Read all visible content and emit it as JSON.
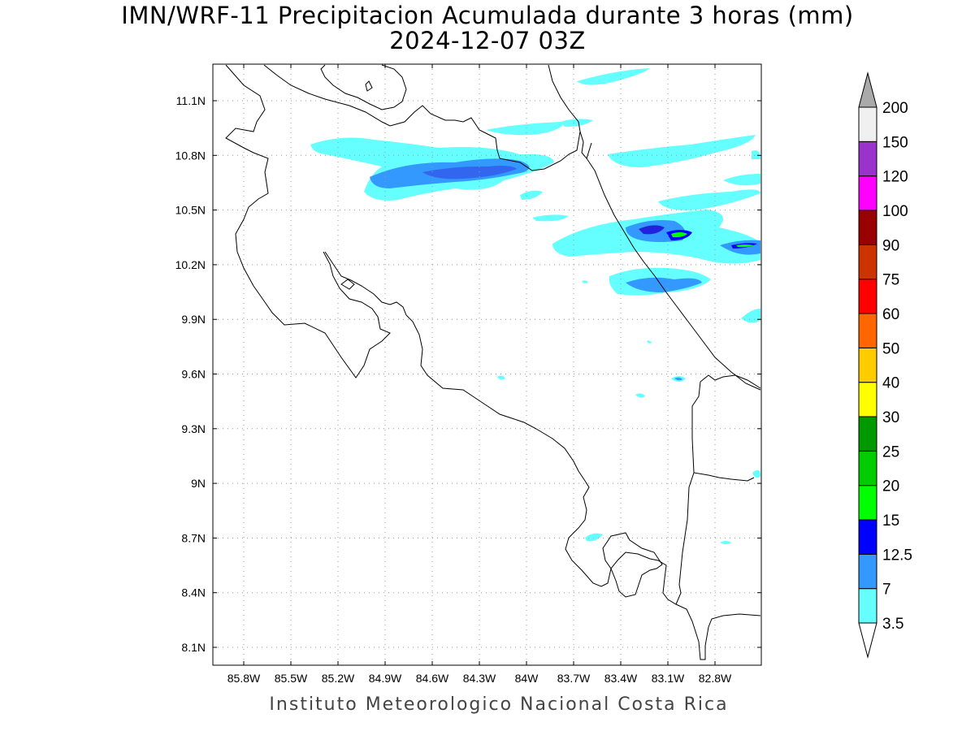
{
  "title": {
    "line1": "IMN/WRF-11 Precipitacion Acumulada durante 3 horas (mm)",
    "line2": "2024-12-07 03Z"
  },
  "footer": "Instituto Meteorologico Nacional Costa Rica",
  "axes": {
    "lon_labels": [
      "85.8W",
      "85.5W",
      "85.2W",
      "84.9W",
      "84.6W",
      "84.3W",
      "84W",
      "83.7W",
      "83.4W",
      "83.1W",
      "82.8W"
    ],
    "lat_labels": [
      "11.1N",
      "10.8N",
      "10.5N",
      "10.2N",
      "9.9N",
      "9.6N",
      "9.3N",
      "9N",
      "8.7N",
      "8.4N",
      "8.1N"
    ],
    "gridlines": "dotted"
  },
  "colorbar": {
    "labels": [
      "3.5",
      "7",
      "12.5",
      "15",
      "20",
      "25",
      "30",
      "40",
      "50",
      "60",
      "75",
      "90",
      "100",
      "120",
      "150",
      "200"
    ],
    "colors": [
      "#66ffff",
      "#3399ff",
      "#0000ff",
      "#00ff00",
      "#00cc00",
      "#009900",
      "#ffff00",
      "#ffcc00",
      "#ff6600",
      "#ff0000",
      "#cc3300",
      "#990000",
      "#ff00ff",
      "#9933cc",
      "#f0f0f0"
    ],
    "top_arrow_color": "#aaaaaa",
    "bottom_arrow_color": "#ffffff"
  }
}
